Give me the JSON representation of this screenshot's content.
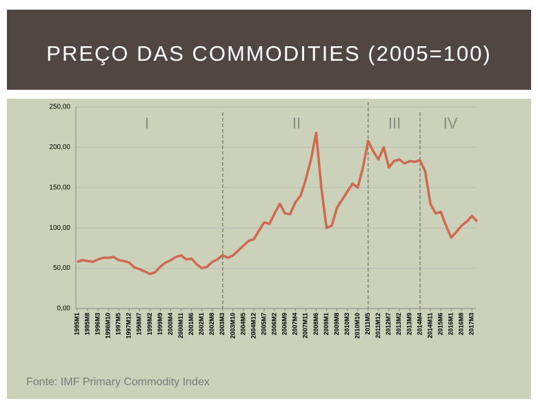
{
  "title": "PREÇO DAS COMMODITIES (2005=100)",
  "source": "Fonte: IMF Primary Commodity Index",
  "chart_data": {
    "type": "line",
    "categories": [
      "1995M1",
      null,
      "1995M8",
      null,
      "1996M3",
      null,
      "1996M10",
      null,
      "1997M5",
      null,
      "1997M12",
      null,
      "1998M7",
      null,
      "1999M2",
      null,
      "1999M9",
      null,
      "2000M4",
      null,
      "2000M11",
      null,
      "2001M6",
      null,
      "2002M1",
      null,
      "2002M8",
      null,
      "2003M3",
      null,
      "2003M10",
      null,
      "2004M5",
      null,
      "2004M12",
      null,
      "2005M7",
      null,
      "2006M2",
      null,
      "2006M9",
      null,
      "2007M4",
      null,
      "2007M11",
      null,
      "2008M6",
      null,
      "2009M1",
      null,
      "2009M8",
      null,
      "2010M3",
      null,
      "2010M10",
      null,
      "2011M5",
      null,
      "2011M12",
      null,
      "2012M7",
      null,
      "2013M2",
      null,
      "2013M9",
      null,
      "2014M4",
      null,
      "2014M11",
      null,
      "2015M6",
      null,
      "2016M1",
      null,
      "2016M8",
      null,
      "2017M3",
      null
    ],
    "values": [
      58,
      60,
      59,
      58,
      61,
      63,
      63,
      64,
      60,
      59,
      57,
      51,
      49,
      46,
      43,
      45,
      52,
      57,
      60,
      64,
      66,
      61,
      62,
      55,
      50,
      52,
      58,
      61,
      66,
      63,
      66,
      72,
      78,
      84,
      86,
      97,
      107,
      105,
      118,
      130,
      118,
      117,
      132,
      140,
      160,
      185,
      218,
      150,
      100,
      103,
      125,
      135,
      145,
      155,
      150,
      175,
      208,
      195,
      185,
      200,
      175,
      183,
      185,
      180,
      183,
      182,
      184,
      170,
      130,
      118,
      120,
      103,
      88,
      95,
      103,
      108,
      115,
      108
    ],
    "color": "#cd6a4f",
    "ylim": [
      0,
      250
    ],
    "yticks": [
      {
        "value": 0,
        "label": "0,00"
      },
      {
        "value": 50,
        "label": "50,00"
      },
      {
        "value": 100,
        "label": "100,00"
      },
      {
        "value": 150,
        "label": "150,00"
      },
      {
        "value": 200,
        "label": "200,00"
      },
      {
        "value": 250,
        "label": "250,00"
      }
    ],
    "grid": true,
    "annotations": [
      "I",
      "II",
      "III",
      "IV"
    ]
  }
}
